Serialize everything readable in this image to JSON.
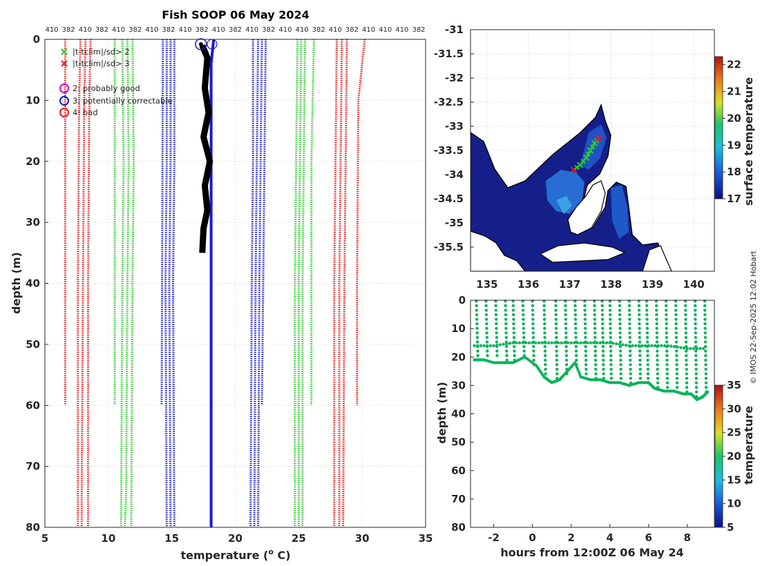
{
  "colors": {
    "red": "#e41a1c",
    "green": "#2bcc2b",
    "blue": "#1a1acc",
    "black": "#000000",
    "magenta": "#cc00cc",
    "dot_green": "#0db35a",
    "sea_dark": "#141f8a",
    "land": "#ffffff"
  },
  "chart_data": [
    {
      "type": "line",
      "title": "Fish SOOP 06 May 2024",
      "xlabel": "temperature (",
      "xlabel_sup": "o",
      "xlabel_end": " C)",
      "ylabel": "depth (m)",
      "xlim": [
        5,
        35
      ],
      "ylim": [
        80,
        0
      ],
      "xticks": [
        "5",
        "10",
        "15",
        "20",
        "25",
        "30",
        "35"
      ],
      "yticks": [
        "0",
        "10",
        "20",
        "30",
        "40",
        "50",
        "60",
        "70",
        "80"
      ],
      "top_tick_labels": [
        "410",
        "382",
        "410",
        "382",
        "410",
        "382",
        "410",
        "382",
        "410",
        "382",
        "410",
        "382",
        "410",
        "382",
        "410",
        "410",
        "382",
        "410",
        "382",
        "410",
        "410",
        "410",
        "382"
      ],
      "legend": [
        {
          "marker": "x",
          "color": "green",
          "label": "|t-tclim|/sd> 2"
        },
        {
          "marker": "x",
          "color": "red",
          "label": "|t-tclim|/sd> 3"
        },
        {
          "marker": "o",
          "color": "magenta",
          "label": "2: probably good"
        },
        {
          "marker": "o",
          "color": "blue",
          "label": "3: potentially correctable"
        },
        {
          "marker": "o",
          "color": "red",
          "label": "4: bad"
        }
      ],
      "climatology_lines": [
        {
          "color": "red",
          "style": "dots",
          "points": [
            [
              6.6,
              0
            ],
            [
              6.6,
              60
            ]
          ]
        },
        {
          "color": "red",
          "style": "dots",
          "points": [
            [
              7.8,
              0
            ],
            [
              7.7,
              10
            ],
            [
              7.6,
              40
            ],
            [
              7.6,
              80
            ]
          ]
        },
        {
          "color": "red",
          "style": "dots",
          "points": [
            [
              8.2,
              0
            ],
            [
              8.1,
              10
            ],
            [
              8.0,
              40
            ],
            [
              7.9,
              75
            ],
            [
              7.9,
              80
            ]
          ]
        },
        {
          "color": "red",
          "style": "dots",
          "points": [
            [
              8.6,
              0
            ],
            [
              8.5,
              10
            ],
            [
              8.4,
              40
            ],
            [
              8.4,
              80
            ]
          ]
        },
        {
          "color": "green",
          "style": "dots",
          "points": [
            [
              10.5,
              0
            ],
            [
              10.5,
              60
            ]
          ]
        },
        {
          "color": "green",
          "style": "dots",
          "points": [
            [
              11.1,
              0
            ],
            [
              11.2,
              20
            ],
            [
              11.1,
              40
            ],
            [
              11.0,
              80
            ]
          ]
        },
        {
          "color": "green",
          "style": "dots",
          "points": [
            [
              11.5,
              0
            ],
            [
              11.6,
              20
            ],
            [
              11.5,
              40
            ],
            [
              11.4,
              75
            ],
            [
              11.3,
              80
            ]
          ]
        },
        {
          "color": "green",
          "style": "dots",
          "points": [
            [
              11.9,
              0
            ],
            [
              12.0,
              20
            ],
            [
              11.9,
              40
            ],
            [
              11.8,
              80
            ]
          ]
        },
        {
          "color": "blue",
          "style": "dots",
          "points": [
            [
              14.3,
              0
            ],
            [
              14.2,
              60
            ]
          ]
        },
        {
          "color": "blue",
          "style": "dots",
          "points": [
            [
              14.6,
              0
            ],
            [
              14.6,
              20
            ],
            [
              14.5,
              40
            ],
            [
              14.6,
              80
            ]
          ]
        },
        {
          "color": "blue",
          "style": "dots",
          "points": [
            [
              14.9,
              0
            ],
            [
              14.9,
              20
            ],
            [
              14.8,
              40
            ],
            [
              14.9,
              80
            ]
          ]
        },
        {
          "color": "blue",
          "style": "dots",
          "points": [
            [
              15.2,
              0
            ],
            [
              15.2,
              20
            ],
            [
              15.1,
              40
            ],
            [
              15.2,
              80
            ]
          ]
        },
        {
          "color": "blue",
          "style": "dots",
          "points": [
            [
              21.4,
              0
            ],
            [
              21.4,
              20
            ],
            [
              21.3,
              40
            ],
            [
              21.2,
              80
            ]
          ]
        },
        {
          "color": "blue",
          "style": "dots",
          "points": [
            [
              21.8,
              0
            ],
            [
              21.7,
              20
            ],
            [
              21.6,
              40
            ],
            [
              21.5,
              80
            ]
          ]
        },
        {
          "color": "blue",
          "style": "dots",
          "points": [
            [
              22.1,
              0
            ],
            [
              22.0,
              20
            ],
            [
              21.9,
              40
            ],
            [
              21.8,
              80
            ]
          ]
        },
        {
          "color": "blue",
          "style": "dots",
          "points": [
            [
              22.4,
              0
            ],
            [
              22.3,
              20
            ],
            [
              22.2,
              40
            ],
            [
              22.1,
              60
            ]
          ]
        },
        {
          "color": "green",
          "style": "dots",
          "points": [
            [
              24.9,
              0
            ],
            [
              24.8,
              20
            ],
            [
              24.7,
              40
            ],
            [
              24.7,
              80
            ]
          ]
        },
        {
          "color": "green",
          "style": "dots",
          "points": [
            [
              25.2,
              0
            ],
            [
              25.1,
              20
            ],
            [
              25.0,
              40
            ],
            [
              25.0,
              80
            ]
          ]
        },
        {
          "color": "green",
          "style": "dots",
          "points": [
            [
              25.5,
              0
            ],
            [
              25.4,
              20
            ],
            [
              25.3,
              40
            ],
            [
              25.3,
              80
            ]
          ]
        },
        {
          "color": "green",
          "style": "dots",
          "points": [
            [
              26.2,
              0
            ],
            [
              26.0,
              20
            ],
            [
              26.0,
              40
            ],
            [
              26.0,
              60
            ]
          ]
        },
        {
          "color": "red",
          "style": "dots",
          "points": [
            [
              28.0,
              0
            ],
            [
              27.9,
              20
            ],
            [
              27.8,
              40
            ],
            [
              27.8,
              80
            ]
          ]
        },
        {
          "color": "red",
          "style": "dots",
          "points": [
            [
              28.4,
              0
            ],
            [
              28.3,
              20
            ],
            [
              28.2,
              40
            ],
            [
              28.2,
              80
            ]
          ]
        },
        {
          "color": "red",
          "style": "dots",
          "points": [
            [
              28.8,
              0
            ],
            [
              28.7,
              20
            ],
            [
              28.6,
              40
            ],
            [
              28.5,
              80
            ]
          ]
        },
        {
          "color": "red",
          "style": "dots",
          "points": [
            [
              30.2,
              0
            ],
            [
              30.0,
              4
            ],
            [
              29.7,
              10
            ],
            [
              29.6,
              40
            ],
            [
              29.6,
              60
            ]
          ]
        }
      ],
      "surface_temp_line": {
        "color": "blue",
        "points": [
          [
            18.3,
            0
          ],
          [
            18.1,
            4
          ],
          [
            18.1,
            80
          ]
        ]
      },
      "profile_line": {
        "color": "black",
        "points": [
          [
            17.4,
            1
          ],
          [
            17.8,
            3
          ],
          [
            17.6,
            8
          ],
          [
            17.9,
            12
          ],
          [
            17.5,
            16
          ],
          [
            18.0,
            20
          ],
          [
            17.6,
            24
          ],
          [
            17.8,
            28
          ],
          [
            17.5,
            31
          ],
          [
            17.4,
            35
          ]
        ]
      },
      "flagged_points": [
        {
          "x": 17.3,
          "y": 0.8,
          "color": "blue"
        }
      ]
    },
    {
      "type": "heatmap",
      "title": "",
      "xlim": [
        134.6,
        140.5
      ],
      "ylim": [
        -36.0,
        -31.0
      ],
      "xticks": [
        "135",
        "136",
        "137",
        "138",
        "139",
        "140"
      ],
      "yticks": [
        "-31",
        "-31.5",
        "-32",
        "-32.5",
        "-33",
        "-33.5",
        "-34",
        "-34.5",
        "-35",
        "-35.5"
      ],
      "colorbar_label": "surface temperature",
      "colorbar_ticks": [
        "17",
        "18",
        "19",
        "20",
        "21",
        "22"
      ],
      "colorbar_range": [
        17,
        22.3
      ],
      "track": [
        [
          137.1,
          -33.9
        ],
        [
          137.25,
          -33.8
        ],
        [
          137.4,
          -33.65
        ],
        [
          137.5,
          -33.5
        ],
        [
          137.6,
          -33.35
        ],
        [
          137.7,
          -33.25
        ]
      ]
    },
    {
      "type": "scatter",
      "title": "",
      "xlabel": "hours from 12:00Z 06 May 24",
      "ylabel": "depth (m)",
      "xlim": [
        -3.2,
        9.4
      ],
      "ylim": [
        80,
        0
      ],
      "xticks": [
        "-2",
        "0",
        "2",
        "4",
        "6",
        "8"
      ],
      "yticks": [
        "0",
        "10",
        "20",
        "30",
        "40",
        "50",
        "60",
        "70",
        "80"
      ],
      "colorbar_label": "temperature",
      "colorbar_ticks": [
        "5",
        "10",
        "15",
        "20",
        "25",
        "30",
        "35"
      ],
      "colorbar_range": [
        5,
        35
      ],
      "lower_trace": [
        [
          -3.0,
          21
        ],
        [
          -2.5,
          21
        ],
        [
          -2.0,
          22
        ],
        [
          -1.5,
          22
        ],
        [
          -1.0,
          22
        ],
        [
          -0.4,
          20
        ],
        [
          0.2,
          23
        ],
        [
          0.6,
          27
        ],
        [
          1.0,
          29
        ],
        [
          1.4,
          28
        ],
        [
          1.8,
          25
        ],
        [
          2.2,
          22
        ],
        [
          2.5,
          27
        ],
        [
          3.0,
          28
        ],
        [
          3.5,
          28
        ],
        [
          4.0,
          29
        ],
        [
          4.5,
          29
        ],
        [
          5.0,
          30
        ],
        [
          5.5,
          29
        ],
        [
          6.0,
          29
        ],
        [
          6.3,
          31
        ],
        [
          6.8,
          32
        ],
        [
          7.3,
          32
        ],
        [
          7.8,
          33
        ],
        [
          8.2,
          33
        ],
        [
          8.5,
          35
        ],
        [
          8.8,
          34
        ],
        [
          9.1,
          32
        ]
      ],
      "upper_trace": [
        [
          -3.0,
          16
        ],
        [
          -2.0,
          16
        ],
        [
          -1.0,
          15
        ],
        [
          0.0,
          15
        ],
        [
          1.0,
          15
        ],
        [
          2.0,
          15
        ],
        [
          3.0,
          15
        ],
        [
          4.0,
          15
        ],
        [
          5.0,
          16
        ],
        [
          6.0,
          16
        ],
        [
          7.0,
          16
        ],
        [
          8.0,
          17
        ],
        [
          9.0,
          17
        ]
      ],
      "dive_hours": [
        -2.9,
        -2.4,
        -1.9,
        -1.4,
        -1.0,
        -0.5,
        0.0,
        0.6,
        1.2,
        1.7,
        2.2,
        2.7,
        3.2,
        3.6,
        4.0,
        4.5,
        5.0,
        5.5,
        5.9,
        6.4,
        6.9,
        7.4,
        7.9,
        8.4,
        8.9
      ],
      "dive_bottoms": [
        20,
        21,
        21,
        22,
        22,
        20,
        23,
        27,
        29,
        27,
        24,
        27,
        28,
        28,
        29,
        29,
        30,
        29,
        29,
        31,
        32,
        32,
        33,
        34,
        33
      ]
    }
  ],
  "watermark": "© IMOS 22-Sep-2025 12:02 Hobart"
}
